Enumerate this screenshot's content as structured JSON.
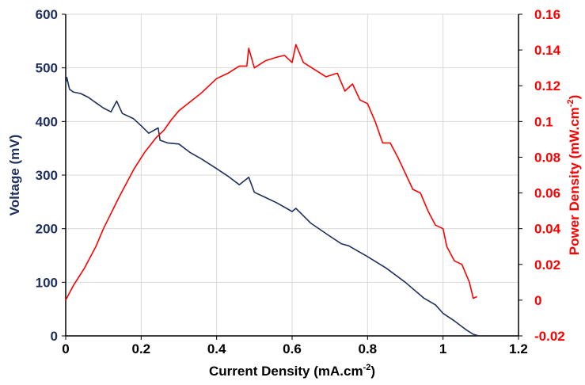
{
  "chart_data": {
    "type": "line",
    "xlabel": "Current Density (mA.cm",
    "xlabel_sup": "-2",
    "xlabel_end": ")",
    "ylabel_left": "Voltage (mV)",
    "ylabel_right": "Power Density (mW.cm",
    "ylabel_right_sup": "-2",
    "ylabel_right_end": ")",
    "xlim": [
      0,
      1.2
    ],
    "ylim_left": [
      0,
      600
    ],
    "ylim_right": [
      -0.02,
      0.16
    ],
    "x_ticks": [
      "0",
      "0.2",
      "0.4",
      "0.6",
      "0.8",
      "1",
      "1.2"
    ],
    "y_left_ticks": [
      "0",
      "100",
      "200",
      "300",
      "400",
      "500",
      "600"
    ],
    "y_right_ticks": [
      "-0.02",
      "0",
      "0.02",
      "0.04",
      "0.06",
      "0.08",
      "0.1",
      "0.12",
      "0.14",
      "0.16"
    ],
    "grid": true,
    "legend": "none",
    "colors": {
      "voltage": "#1f2f5e",
      "power": "#ff0000",
      "grid": "#d9d9d9"
    },
    "series": [
      {
        "axis": "left",
        "x": [
          0,
          0.003,
          0.01,
          0.02,
          0.04,
          0.06,
          0.08,
          0.1,
          0.12,
          0.135,
          0.15,
          0.18,
          0.2,
          0.22,
          0.245,
          0.25,
          0.27,
          0.3,
          0.33,
          0.36,
          0.4,
          0.43,
          0.46,
          0.485,
          0.5,
          0.53,
          0.56,
          0.6,
          0.61,
          0.65,
          0.7,
          0.73,
          0.75,
          0.8,
          0.85,
          0.9,
          0.95,
          0.98,
          1.0,
          1.03,
          1.06,
          1.08,
          1.095
        ],
        "y": [
          470,
          482,
          460,
          455,
          452,
          445,
          435,
          425,
          418,
          438,
          415,
          405,
          392,
          378,
          388,
          365,
          360,
          358,
          342,
          330,
          312,
          298,
          282,
          296,
          268,
          258,
          248,
          232,
          238,
          210,
          186,
          172,
          168,
          148,
          126,
          100,
          70,
          58,
          42,
          28,
          12,
          3,
          0
        ]
      },
      {
        "axis": "right",
        "x": [
          0,
          0.02,
          0.05,
          0.08,
          0.1,
          0.14,
          0.18,
          0.21,
          0.24,
          0.26,
          0.28,
          0.3,
          0.33,
          0.36,
          0.38,
          0.4,
          0.43,
          0.46,
          0.48,
          0.485,
          0.5,
          0.53,
          0.56,
          0.58,
          0.6,
          0.61,
          0.63,
          0.66,
          0.69,
          0.72,
          0.74,
          0.76,
          0.78,
          0.8,
          0.82,
          0.84,
          0.86,
          0.88,
          0.9,
          0.92,
          0.94,
          0.96,
          0.98,
          1.0,
          1.01,
          1.03,
          1.05,
          1.07,
          1.08,
          1.09
        ],
        "y": [
          0,
          0.008,
          0.018,
          0.03,
          0.04,
          0.057,
          0.073,
          0.083,
          0.091,
          0.095,
          0.101,
          0.106,
          0.111,
          0.116,
          0.12,
          0.124,
          0.127,
          0.131,
          0.131,
          0.141,
          0.13,
          0.134,
          0.136,
          0.137,
          0.133,
          0.143,
          0.133,
          0.129,
          0.125,
          0.127,
          0.117,
          0.121,
          0.112,
          0.11,
          0.1,
          0.088,
          0.088,
          0.08,
          0.071,
          0.062,
          0.06,
          0.05,
          0.042,
          0.04,
          0.03,
          0.022,
          0.02,
          0.01,
          0.001,
          0.002
        ]
      }
    ]
  }
}
